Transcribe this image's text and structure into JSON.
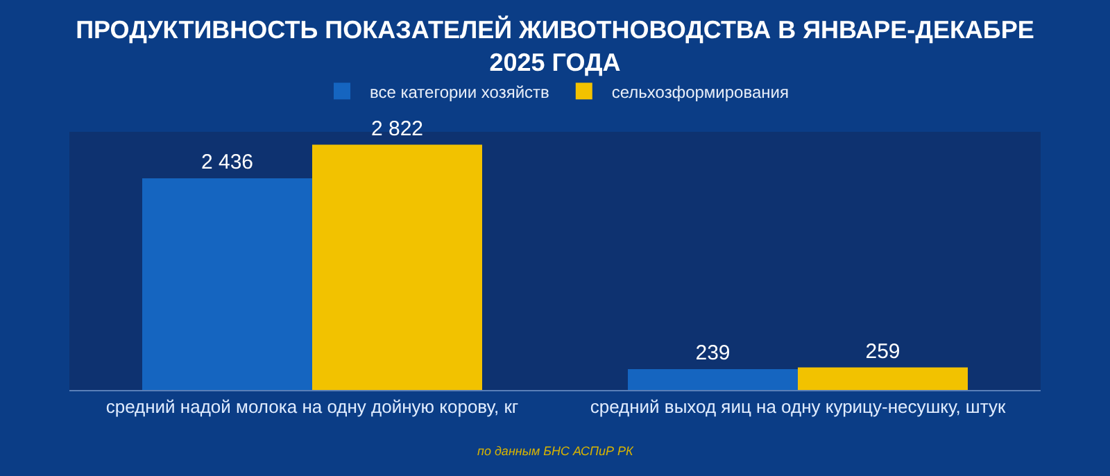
{
  "chart_data": {
    "type": "bar",
    "title": "ПРОДУКТИВНОСТЬ ПОКАЗАТЕЛЕЙ ЖИВОТНОВОДСТВА В ЯНВАРЕ-ДЕКАБРЕ 2025 ГОДА",
    "categories": [
      "средний надой молока на одну дойную корову, кг",
      "средний выход яиц на одну курицу-несушку, штук"
    ],
    "series": [
      {
        "name": "все категории хозяйств",
        "color": "#1565c0",
        "values": [
          2436,
          239
        ],
        "value_labels": [
          "2 436",
          "239"
        ]
      },
      {
        "name": "сельхозформирования",
        "color": "#f2c200",
        "values": [
          2822,
          259
        ],
        "value_labels": [
          "2 822",
          "259"
        ]
      }
    ],
    "annotations": [
      "по данным БНС АСПиР РК"
    ],
    "legend": "top",
    "grid": false
  }
}
